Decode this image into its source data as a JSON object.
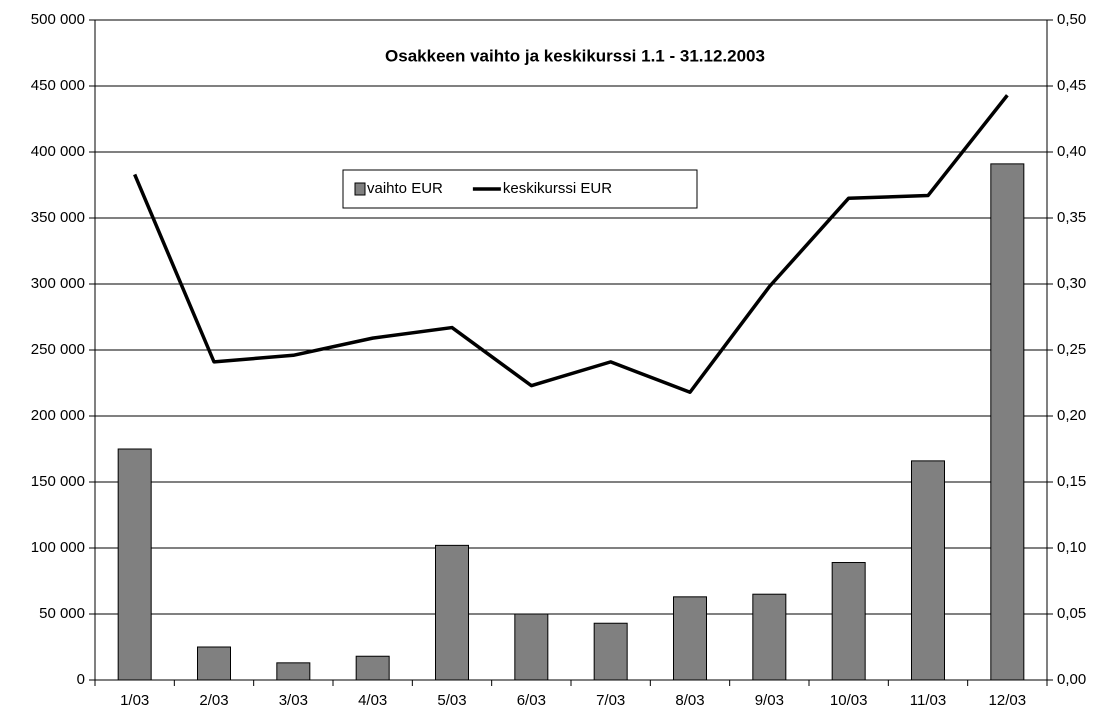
{
  "chart_data": {
    "type": "bar_line",
    "title": "Osakkeen vaihto ja keskikurssi 1.1 - 31.12.2003",
    "categories": [
      "1/03",
      "2/03",
      "3/03",
      "4/03",
      "5/03",
      "6/03",
      "7/03",
      "8/03",
      "9/03",
      "10/03",
      "11/03",
      "12/03"
    ],
    "series": [
      {
        "name": "vaihto EUR",
        "color": "#808080",
        "type": "bar",
        "axis": "y",
        "values": [
          175000,
          25000,
          13000,
          18000,
          102000,
          50000,
          43000,
          63000,
          65000,
          89000,
          166000,
          391000
        ]
      },
      {
        "name": "keskikurssi EUR",
        "color": "#000000",
        "type": "line",
        "axis": "y2",
        "values": [
          0.383,
          0.241,
          0.246,
          0.259,
          0.267,
          0.223,
          0.241,
          0.218,
          0.298,
          0.365,
          0.367,
          0.443
        ]
      }
    ],
    "ylim": [
      0,
      500000
    ],
    "yticks": [
      0,
      {
        "value": 50000,
        "label": "50 000"
      },
      {
        "value": 100000,
        "label": "100 000"
      },
      {
        "value": 150000,
        "label": "150 000"
      },
      {
        "value": 200000,
        "label": "200 000"
      },
      {
        "value": 250000,
        "label": "250 000"
      },
      {
        "value": 300000,
        "label": "300 000"
      },
      {
        "value": 350000,
        "label": "350 000"
      },
      {
        "value": 400000,
        "label": "400 000"
      },
      {
        "value": 450000,
        "label": "450 000"
      },
      {
        "value": 500000,
        "label": "500 000"
      }
    ],
    "y2lim": [
      0,
      0.5
    ],
    "y2ticks": [
      {
        "value": 0,
        "label": "0,00"
      },
      {
        "value": 0.05,
        "label": "0,05"
      },
      {
        "value": 0.1,
        "label": "0,10"
      },
      {
        "value": 0.15,
        "label": "0,15"
      },
      {
        "value": 0.2,
        "label": "0,20"
      },
      {
        "value": 0.25,
        "label": "0,25"
      },
      {
        "value": 0.3,
        "label": "0,30"
      },
      {
        "value": 0.35,
        "label": "0,35"
      },
      {
        "value": 0.4,
        "label": "0,40"
      },
      {
        "value": 0.45,
        "label": "0,45"
      },
      {
        "value": 0.5,
        "label": "0,50"
      }
    ],
    "grid": true
  }
}
